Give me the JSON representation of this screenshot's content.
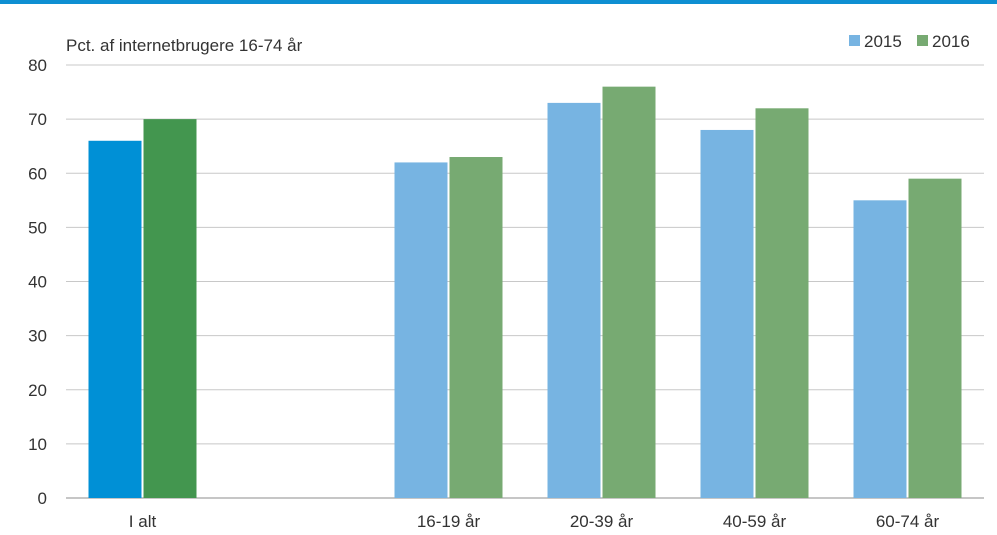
{
  "chart_data": {
    "type": "bar",
    "subtitle": "Pct. af internetbrugere 16-74 år",
    "categories": [
      "I alt",
      "",
      "16-19 år",
      "20-39 år",
      "40-59 år",
      "60-74 år"
    ],
    "series": [
      {
        "name": "2015",
        "values": [
          66,
          null,
          62,
          73,
          68,
          55
        ],
        "color": "#77b4e2",
        "highlight_color": "#0090d6"
      },
      {
        "name": "2016",
        "values": [
          70,
          null,
          63,
          76,
          72,
          59
        ],
        "color": "#77aa72",
        "highlight_color": "#43964f"
      }
    ],
    "highlight_category": "I alt",
    "ylim": [
      0,
      80
    ],
    "yticks": [
      0,
      10,
      20,
      30,
      40,
      50,
      60,
      70,
      80
    ],
    "grid": true,
    "legend_position": "top-right"
  }
}
